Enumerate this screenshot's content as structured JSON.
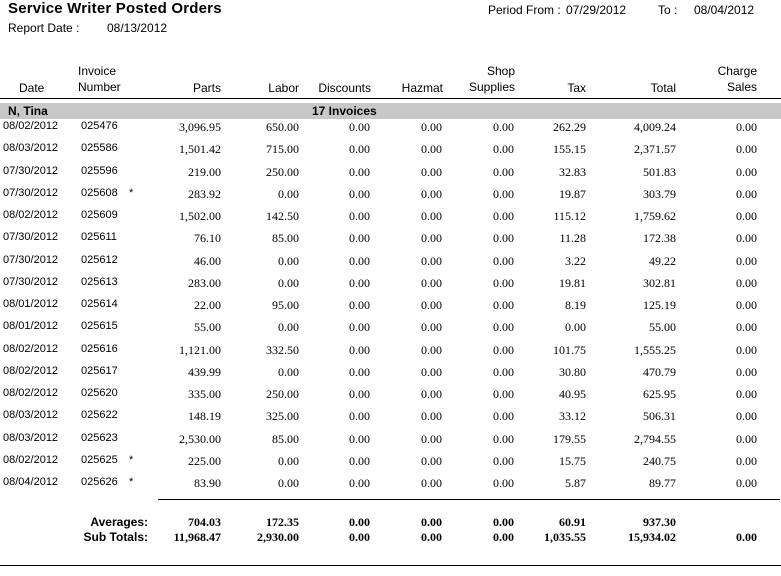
{
  "report": {
    "title": "Service Writer Posted Orders",
    "report_date_label": "Report Date :",
    "report_date": "08/13/2012",
    "period_from_label": "Period From :",
    "period_from": "07/29/2012",
    "to_label": "To :",
    "to_date": "08/04/2012"
  },
  "columns": {
    "date": "Date",
    "invoice_line1": "Invoice",
    "invoice_line2": "Number",
    "parts": "Parts",
    "labor": "Labor",
    "discounts": "Discounts",
    "hazmat": "Hazmat",
    "shop_line1": "Shop",
    "shop_line2": "Supplies",
    "tax": "Tax",
    "total": "Total",
    "charge_line1": "Charge",
    "charge_line2": "Sales"
  },
  "group": {
    "name": "N, Tina",
    "count": "17 Invoices"
  },
  "rows": [
    {
      "date": "08/02/2012",
      "invoice": "025476",
      "flag": "",
      "parts": "3,096.95",
      "labor": "650.00",
      "discounts": "0.00",
      "hazmat": "0.00",
      "shop": "0.00",
      "tax": "262.29",
      "total": "4,009.24",
      "charge": "0.00"
    },
    {
      "date": "08/03/2012",
      "invoice": "025586",
      "flag": "",
      "parts": "1,501.42",
      "labor": "715.00",
      "discounts": "0.00",
      "hazmat": "0.00",
      "shop": "0.00",
      "tax": "155.15",
      "total": "2,371.57",
      "charge": "0.00"
    },
    {
      "date": "07/30/2012",
      "invoice": "025596",
      "flag": "",
      "parts": "219.00",
      "labor": "250.00",
      "discounts": "0.00",
      "hazmat": "0.00",
      "shop": "0.00",
      "tax": "32.83",
      "total": "501.83",
      "charge": "0.00"
    },
    {
      "date": "07/30/2012",
      "invoice": "025608",
      "flag": "*",
      "parts": "283.92",
      "labor": "0.00",
      "discounts": "0.00",
      "hazmat": "0.00",
      "shop": "0.00",
      "tax": "19.87",
      "total": "303.79",
      "charge": "0.00"
    },
    {
      "date": "08/02/2012",
      "invoice": "025609",
      "flag": "",
      "parts": "1,502.00",
      "labor": "142.50",
      "discounts": "0.00",
      "hazmat": "0.00",
      "shop": "0.00",
      "tax": "115.12",
      "total": "1,759.62",
      "charge": "0.00"
    },
    {
      "date": "07/30/2012",
      "invoice": "025611",
      "flag": "",
      "parts": "76.10",
      "labor": "85.00",
      "discounts": "0.00",
      "hazmat": "0.00",
      "shop": "0.00",
      "tax": "11.28",
      "total": "172.38",
      "charge": "0.00"
    },
    {
      "date": "07/30/2012",
      "invoice": "025612",
      "flag": "",
      "parts": "46.00",
      "labor": "0.00",
      "discounts": "0.00",
      "hazmat": "0.00",
      "shop": "0.00",
      "tax": "3.22",
      "total": "49.22",
      "charge": "0.00"
    },
    {
      "date": "07/30/2012",
      "invoice": "025613",
      "flag": "",
      "parts": "283.00",
      "labor": "0.00",
      "discounts": "0.00",
      "hazmat": "0.00",
      "shop": "0.00",
      "tax": "19.81",
      "total": "302.81",
      "charge": "0.00"
    },
    {
      "date": "08/01/2012",
      "invoice": "025614",
      "flag": "",
      "parts": "22.00",
      "labor": "95.00",
      "discounts": "0.00",
      "hazmat": "0.00",
      "shop": "0.00",
      "tax": "8.19",
      "total": "125.19",
      "charge": "0.00"
    },
    {
      "date": "08/01/2012",
      "invoice": "025615",
      "flag": "",
      "parts": "55.00",
      "labor": "0.00",
      "discounts": "0.00",
      "hazmat": "0.00",
      "shop": "0.00",
      "tax": "0.00",
      "total": "55.00",
      "charge": "0.00"
    },
    {
      "date": "08/02/2012",
      "invoice": "025616",
      "flag": "",
      "parts": "1,121.00",
      "labor": "332.50",
      "discounts": "0.00",
      "hazmat": "0.00",
      "shop": "0.00",
      "tax": "101.75",
      "total": "1,555.25",
      "charge": "0.00"
    },
    {
      "date": "08/02/2012",
      "invoice": "025617",
      "flag": "",
      "parts": "439.99",
      "labor": "0.00",
      "discounts": "0.00",
      "hazmat": "0.00",
      "shop": "0.00",
      "tax": "30.80",
      "total": "470.79",
      "charge": "0.00"
    },
    {
      "date": "08/02/2012",
      "invoice": "025620",
      "flag": "",
      "parts": "335.00",
      "labor": "250.00",
      "discounts": "0.00",
      "hazmat": "0.00",
      "shop": "0.00",
      "tax": "40.95",
      "total": "625.95",
      "charge": "0.00"
    },
    {
      "date": "08/03/2012",
      "invoice": "025622",
      "flag": "",
      "parts": "148.19",
      "labor": "325.00",
      "discounts": "0.00",
      "hazmat": "0.00",
      "shop": "0.00",
      "tax": "33.12",
      "total": "506.31",
      "charge": "0.00"
    },
    {
      "date": "08/03/2012",
      "invoice": "025623",
      "flag": "",
      "parts": "2,530.00",
      "labor": "85.00",
      "discounts": "0.00",
      "hazmat": "0.00",
      "shop": "0.00",
      "tax": "179.55",
      "total": "2,794.55",
      "charge": "0.00"
    },
    {
      "date": "08/02/2012",
      "invoice": "025625",
      "flag": "*",
      "parts": "225.00",
      "labor": "0.00",
      "discounts": "0.00",
      "hazmat": "0.00",
      "shop": "0.00",
      "tax": "15.75",
      "total": "240.75",
      "charge": "0.00"
    },
    {
      "date": "08/04/2012",
      "invoice": "025626",
      "flag": "*",
      "parts": "83.90",
      "labor": "0.00",
      "discounts": "0.00",
      "hazmat": "0.00",
      "shop": "0.00",
      "tax": "5.87",
      "total": "89.77",
      "charge": "0.00"
    }
  ],
  "averages": {
    "label": "Averages:",
    "parts": "704.03",
    "labor": "172.35",
    "discounts": "0.00",
    "hazmat": "0.00",
    "shop": "0.00",
    "tax": "60.91",
    "total": "937.30",
    "charge": ""
  },
  "subtotals": {
    "label": "Sub Totals:",
    "parts": "11,968.47",
    "labor": "2,930.00",
    "discounts": "0.00",
    "hazmat": "0.00",
    "shop": "0.00",
    "tax": "1,035.55",
    "total": "15,934.02",
    "charge": "0.00"
  }
}
